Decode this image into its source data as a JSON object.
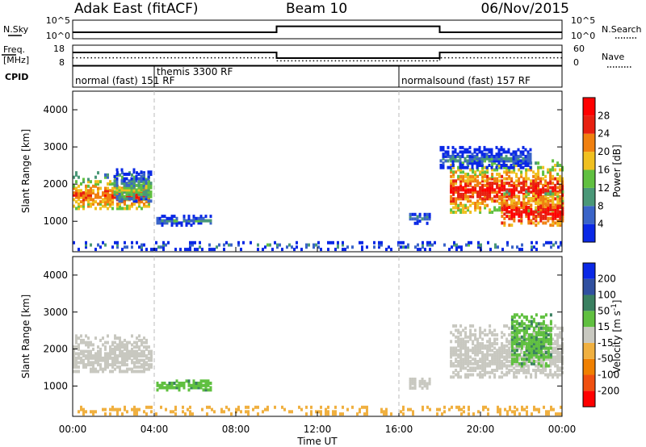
{
  "header": {
    "radar": "Adak East (fitACF)",
    "beam": "Beam 10",
    "date": "06/Nov/2015"
  },
  "strips": {
    "nsky_label": "N.Sky",
    "nsky_ticks": [
      "10^5",
      "10^0"
    ],
    "nsearch_label": "N.Search",
    "nsearch_ticks": [
      "10^5",
      "10^0"
    ],
    "freq_label": "Freq.",
    "freq_unit": "[MHz]",
    "freq_ticks": [
      "18",
      "8"
    ],
    "nave_label": "Nave",
    "nave_ticks": [
      "60",
      "0"
    ],
    "cpid_label": "CPID",
    "cpid_modes": [
      {
        "text": "normal (fast) 151 RF",
        "start_hour": 0
      },
      {
        "text": "themis 3300 RF",
        "start_hour": 4
      },
      {
        "text": "normalsound (fast) 157 RF",
        "start_hour": 16
      }
    ],
    "nsky_level": [
      {
        "start_hour": 0,
        "end_hour": 10,
        "level": 0.35
      },
      {
        "start_hour": 10,
        "end_hour": 18,
        "level": 0.72
      },
      {
        "start_hour": 18,
        "end_hour": 24,
        "level": 0.35
      }
    ],
    "freq_level_mhz": [
      {
        "start_hour": 0,
        "end_hour": 10,
        "value": 14.5
      },
      {
        "start_hour": 10,
        "end_hour": 18,
        "value": 11.5
      },
      {
        "start_hour": 18,
        "end_hour": 24,
        "value": 14.5
      }
    ],
    "nave_level": [
      {
        "start_hour": 0,
        "end_hour": 10,
        "value": 22
      },
      {
        "start_hour": 10,
        "end_hour": 18,
        "value": 12
      },
      {
        "start_hour": 18,
        "end_hour": 24,
        "value": 22
      }
    ]
  },
  "chart_data": [
    {
      "type": "heatmap",
      "panel": "power",
      "ylabel": "Slant Range [km]",
      "xlim": [
        0,
        24
      ],
      "ylim": [
        180,
        4500
      ],
      "yticks": [
        "1000",
        "2000",
        "3000",
        "4000"
      ],
      "colorbar_label": "Power [dB]",
      "colorbar_ticks": [
        "4",
        "8",
        "12",
        "16",
        "20",
        "24",
        "28"
      ],
      "colorbar_range": [
        0,
        30
      ],
      "colors": [
        "#0a28e6",
        "#3a64c8",
        "#4a9878",
        "#60c040",
        "#f0c020",
        "#f08010",
        "#e82010",
        "#ff0000"
      ],
      "regions": [
        {
          "t0": 0.0,
          "t1": 3.8,
          "r0": 1300,
          "r1": 2300,
          "center": 1650,
          "value": 24
        },
        {
          "t0": 2.0,
          "t1": 3.9,
          "r0": 1500,
          "r1": 2400,
          "center": 1800,
          "value": 14
        },
        {
          "t0": 4.1,
          "t1": 6.8,
          "r0": 850,
          "r1": 1100,
          "center": 970,
          "value": 9
        },
        {
          "t0": 16.5,
          "t1": 17.5,
          "r0": 900,
          "r1": 1200,
          "center": 1050,
          "value": 9
        },
        {
          "t0": 18.5,
          "t1": 24.0,
          "r0": 1200,
          "r1": 2600,
          "center": 1800,
          "value": 26
        },
        {
          "t0": 21.0,
          "t1": 24.0,
          "r0": 850,
          "r1": 1800,
          "center": 1200,
          "value": 28
        },
        {
          "t0": 18.0,
          "t1": 22.5,
          "r0": 2400,
          "r1": 3000,
          "center": 2650,
          "value": 8
        },
        {
          "t0": 0.0,
          "t1": 24.0,
          "r0": 200,
          "r1": 420,
          "center": 300,
          "value": 10
        }
      ]
    },
    {
      "type": "heatmap",
      "panel": "velocity",
      "ylabel": "Slant Range [km]",
      "xlabel": "Time UT",
      "xlim": [
        0,
        24
      ],
      "ylim": [
        180,
        4500
      ],
      "xticks": [
        "00:00",
        "04:00",
        "08:00",
        "12:00",
        "16:00",
        "20:00",
        "00:00"
      ],
      "yticks": [
        "1000",
        "2000",
        "3000",
        "4000"
      ],
      "colorbar_label": "Velocity [m s-1]",
      "colorbar_label_base": "Velocity [m s",
      "colorbar_label_exp": "-1",
      "colorbar_label_close": "]",
      "colorbar_ticks": [
        "-200",
        "-100",
        "-50",
        "-15",
        "15",
        "50",
        "100",
        "200"
      ],
      "colors": [
        "#ff0000",
        "#f05010",
        "#f08000",
        "#f0b040",
        "#c8c8c0",
        "#60c040",
        "#3a8060",
        "#3050a0",
        "#0a28e6"
      ],
      "regions": [
        {
          "t0": 0.0,
          "t1": 3.9,
          "r0": 1350,
          "r1": 2350,
          "center": 1750,
          "value": 0
        },
        {
          "t0": 4.1,
          "t1": 6.8,
          "r0": 850,
          "r1": 1100,
          "center": 970,
          "value": 40
        },
        {
          "t0": 16.5,
          "t1": 17.5,
          "r0": 900,
          "r1": 1200,
          "center": 1050,
          "value": 0
        },
        {
          "t0": 18.5,
          "t1": 24.0,
          "r0": 1200,
          "r1": 2600,
          "center": 1800,
          "value": 0
        },
        {
          "t0": 21.5,
          "t1": 23.5,
          "r0": 1500,
          "r1": 2900,
          "center": 2200,
          "value": 40
        },
        {
          "t0": 0.0,
          "t1": 24.0,
          "r0": 200,
          "r1": 420,
          "center": 300,
          "value": -30
        }
      ]
    }
  ]
}
